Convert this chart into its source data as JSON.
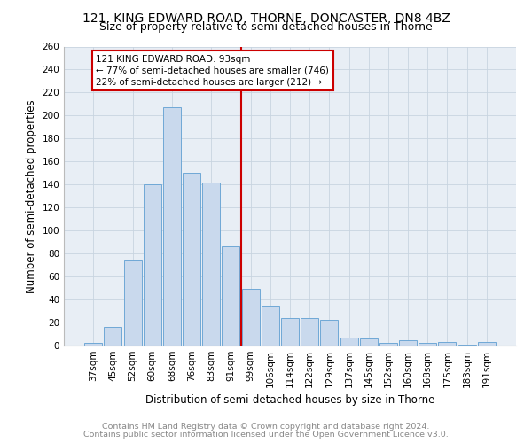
{
  "title1": "121, KING EDWARD ROAD, THORNE, DONCASTER, DN8 4BZ",
  "title2": "Size of property relative to semi-detached houses in Thorne",
  "xlabel": "Distribution of semi-detached houses by size in Thorne",
  "ylabel": "Number of semi-detached properties",
  "footnote1": "Contains HM Land Registry data © Crown copyright and database right 2024.",
  "footnote2": "Contains public sector information licensed under the Open Government Licence v3.0.",
  "categories": [
    "37sqm",
    "45sqm",
    "52sqm",
    "60sqm",
    "68sqm",
    "76sqm",
    "83sqm",
    "91sqm",
    "99sqm",
    "106sqm",
    "114sqm",
    "122sqm",
    "129sqm",
    "137sqm",
    "145sqm",
    "152sqm",
    "160sqm",
    "168sqm",
    "175sqm",
    "183sqm",
    "191sqm"
  ],
  "values": [
    2,
    16,
    74,
    140,
    207,
    150,
    142,
    86,
    49,
    35,
    24,
    24,
    22,
    7,
    6,
    2,
    5,
    2,
    3,
    1,
    3
  ],
  "bar_color": "#c9d9ed",
  "bar_edge_color": "#6fa8d6",
  "property_line_x": 7.5,
  "annotation_text1": "121 KING EDWARD ROAD: 93sqm",
  "annotation_text2": "← 77% of semi-detached houses are smaller (746)",
  "annotation_text3": "22% of semi-detached houses are larger (212) →",
  "annotation_box_color": "#ffffff",
  "annotation_box_edge": "#cc0000",
  "property_line_color": "#cc0000",
  "ylim": [
    0,
    260
  ],
  "yticks": [
    0,
    20,
    40,
    60,
    80,
    100,
    120,
    140,
    160,
    180,
    200,
    220,
    240,
    260
  ],
  "background_color": "#ffffff",
  "plot_bg_color": "#e8eef5",
  "grid_color": "#c8d4e0",
  "title1_fontsize": 10,
  "title2_fontsize": 9,
  "axis_label_fontsize": 8.5,
  "tick_fontsize": 7.5,
  "annotation_fontsize": 7.5,
  "footnote_fontsize": 6.8,
  "footnote_color": "#888888"
}
